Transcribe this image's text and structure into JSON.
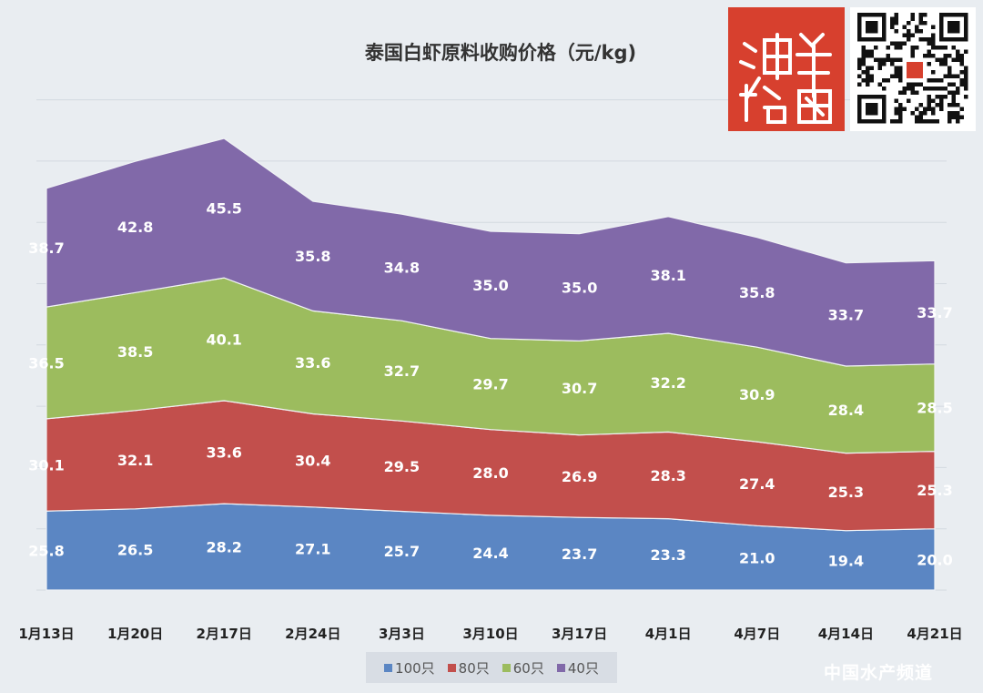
{
  "chart_data": {
    "type": "area",
    "stacked": true,
    "title": "泰国白虾原料收购价格（元/kg)",
    "categories": [
      "1月13日",
      "1月20日",
      "2月17日",
      "2月24日",
      "3月3日",
      "3月10日",
      "3月17日",
      "4月1日",
      "4月7日",
      "4月14日",
      "4月21日"
    ],
    "series": [
      {
        "name": "100只",
        "color": "#5b86c3",
        "values": [
          25.8,
          26.5,
          28.2,
          27.1,
          25.7,
          24.4,
          23.7,
          23.3,
          21.0,
          19.4,
          20.0
        ]
      },
      {
        "name": "80只",
        "color": "#c24f4c",
        "values": [
          30.1,
          32.1,
          33.6,
          30.4,
          29.5,
          28.0,
          26.9,
          28.3,
          27.4,
          25.3,
          25.3
        ]
      },
      {
        "name": "60只",
        "color": "#9cbc5e",
        "values": [
          36.5,
          38.5,
          40.1,
          33.6,
          32.7,
          29.7,
          30.7,
          32.2,
          30.9,
          28.4,
          28.5
        ]
      },
      {
        "name": "40只",
        "color": "#8169a9",
        "values": [
          38.7,
          42.8,
          45.5,
          35.8,
          34.8,
          35.0,
          35.0,
          38.1,
          35.8,
          33.7,
          33.7
        ]
      }
    ],
    "legend": "bottom",
    "grid": true
  },
  "logo": {
    "text": "海鲜指南"
  },
  "watermark": {
    "text": "中国水产频道"
  }
}
